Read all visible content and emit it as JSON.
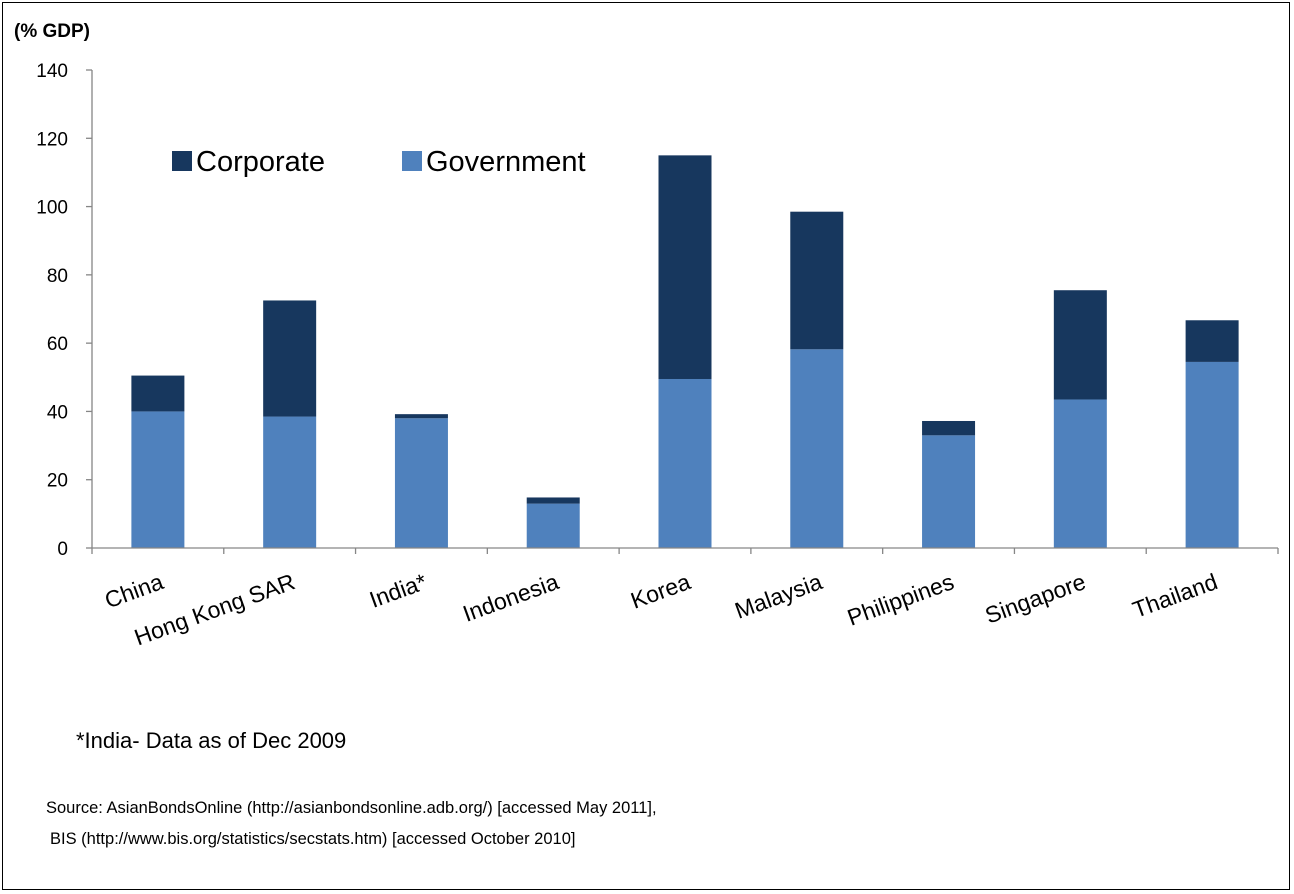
{
  "chart_data": {
    "type": "bar",
    "stacked": true,
    "unit_label": "(% GDP)",
    "categories": [
      "China",
      "Hong Kong SAR",
      "India*",
      "Indonesia",
      "Korea",
      "Malaysia",
      "Philippines",
      "Singapore",
      "Thailand"
    ],
    "series": [
      {
        "name": "Government",
        "color": "#4f81bd",
        "values": [
          40,
          38.5,
          38,
          13,
          49.5,
          58.2,
          33,
          43.5,
          54.5
        ]
      },
      {
        "name": "Corporate",
        "color": "#17375e",
        "values": [
          10.5,
          34,
          1.2,
          1.8,
          65.5,
          40.3,
          4.2,
          32,
          12.2
        ]
      }
    ],
    "legend_order": [
      "Corporate",
      "Government"
    ],
    "ylim": [
      0,
      140
    ],
    "yticks": [
      0,
      20,
      40,
      60,
      80,
      100,
      120,
      140
    ],
    "grid": false,
    "legend_position": "top-left, inside plot"
  },
  "footnote": "*India- Data as of Dec 2009",
  "source_line1": "Source: AsianBondsOnline (http://asianbondsonline.adb.org/) [accessed May 2011],",
  "source_line2": "BIS (http://www.bis.org/statistics/secstats.htm) [accessed October 2010]"
}
